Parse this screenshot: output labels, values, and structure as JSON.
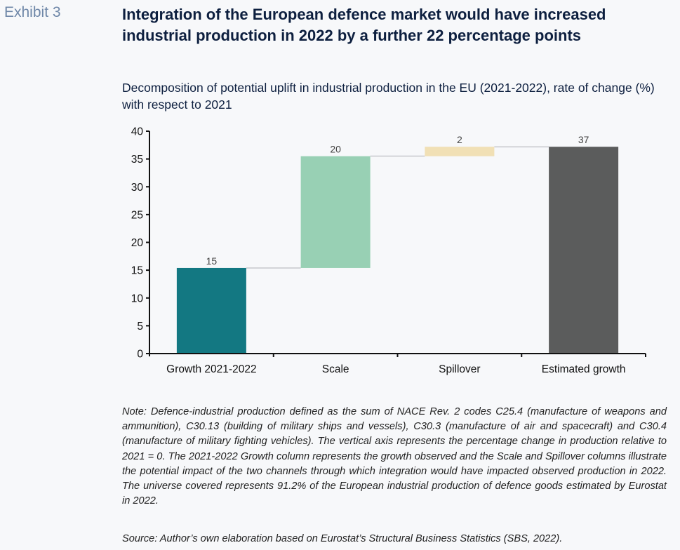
{
  "header": {
    "exhibit_label": "Exhibit 3",
    "title": "Integration of the European defence market would have increased industrial production in 2022 by a further 22 percentage points",
    "subtitle": "Decomposition of potential uplift in industrial production in the EU (2021-2022), rate of change (%) with respect to 2021"
  },
  "chart_data": {
    "type": "bar",
    "subtype": "waterfall",
    "title": "Decomposition of potential uplift in industrial production in the EU (2021-2022), rate of change (%) with respect to 2021",
    "xlabel": "",
    "ylabel": "",
    "categories": [
      "Growth 2021-2022",
      "Scale",
      "Spillover",
      "Estimated growth"
    ],
    "values": [
      15,
      20,
      2,
      37
    ],
    "bar_bases": [
      0,
      15.4,
      35.5,
      0
    ],
    "bar_tops": [
      15.4,
      35.5,
      37.2,
      37.2
    ],
    "data_labels": [
      "15",
      "20",
      "2",
      "37"
    ],
    "colors": [
      "#137882",
      "#98d0b4",
      "#f1e0b5",
      "#5b5c5c"
    ],
    "connector_color": "#d3d4d8",
    "ylim": [
      0,
      40
    ],
    "yticks": [
      0,
      5,
      10,
      15,
      20,
      25,
      30,
      35,
      40
    ],
    "grid": false,
    "legend": "none"
  },
  "footer": {
    "note": "Note: Defence-industrial production defined as the sum of NACE Rev. 2 codes C25.4 (manufacture of weapons and ammunition), C30.13 (building of military ships and vessels), C30.3 (manufacture of air and spacecraft) and C30.4 (manufacture of military fighting vehicles). The vertical axis represents the percentage change in production relative to 2021 = 0. The 2021-2022 Growth column represents the growth observed and the Scale and Spillover columns illustrate the potential impact of the two channels through which integration would have impacted observed production in 2022. The universe covered represents 91.2% of the European industrial production of defence goods estimated by Eurostat in 2022.",
    "source": "Source: Author’s own elaboration based on Eurostat’s Structural Business Statistics (SBS, 2022)."
  }
}
